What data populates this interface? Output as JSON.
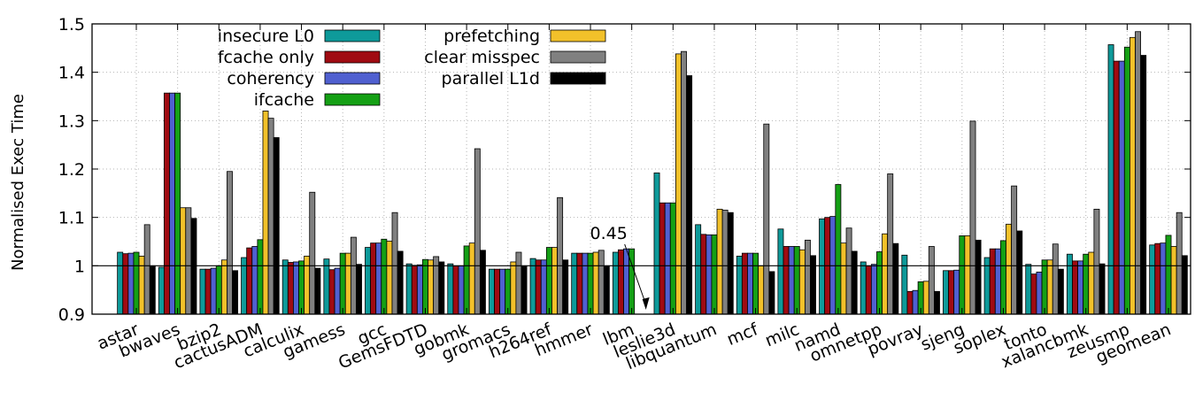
{
  "chart_data": {
    "type": "bar",
    "title": "",
    "xlabel": "",
    "ylabel": "Normalised Exec Time",
    "ylim": [
      0.9,
      1.5
    ],
    "yticks": [
      "0.9",
      "1",
      "1.1",
      "1.2",
      "1.3",
      "1.4",
      "1.5"
    ],
    "ytick_values": [
      0.9,
      1.0,
      1.1,
      1.2,
      1.3,
      1.4,
      1.5
    ],
    "grid": true,
    "legend_position": "top-left",
    "reference_line": 1.0,
    "categories": [
      "astar",
      "bwaves",
      "bzip2",
      "cactusADM",
      "calculix",
      "gamess",
      "gcc",
      "GemsFDTD",
      "gobmk",
      "gromacs",
      "h264ref",
      "hmmer",
      "lbm",
      "leslie3d",
      "libquantum",
      "mcf",
      "milc",
      "namd",
      "omnetpp",
      "povray",
      "sjeng",
      "soplex",
      "tonto",
      "xalancbmk",
      "zeusmp",
      "geomean"
    ],
    "series": [
      {
        "name": "insecure L0",
        "color": "#0e9a9a",
        "values": [
          1.028,
          0.997,
          0.993,
          1.017,
          1.012,
          1.014,
          1.038,
          1.004,
          1.004,
          0.993,
          1.015,
          1.026,
          1.028,
          1.192,
          1.085,
          1.02,
          1.076,
          1.097,
          1.008,
          1.022,
          0.99,
          1.017,
          1.003,
          1.024,
          1.457,
          1.043
        ]
      },
      {
        "name": "fcache only",
        "color": "#a00b12",
        "values": [
          1.025,
          1.357,
          0.993,
          1.037,
          1.007,
          0.992,
          1.047,
          1.001,
          1.0,
          0.993,
          1.012,
          1.026,
          1.033,
          1.13,
          1.065,
          1.026,
          1.04,
          1.1,
          1.0,
          0.947,
          0.99,
          1.035,
          0.983,
          1.01,
          1.423,
          1.046
        ]
      },
      {
        "name": "coherency",
        "color": "#5060d0",
        "values": [
          1.026,
          1.357,
          0.995,
          1.04,
          1.008,
          0.995,
          1.047,
          1.002,
          1.0,
          0.993,
          1.012,
          1.026,
          1.035,
          1.13,
          1.064,
          1.026,
          1.04,
          1.102,
          1.003,
          0.949,
          0.991,
          1.035,
          0.987,
          1.01,
          1.423,
          1.047
        ]
      },
      {
        "name": "ifcache",
        "color": "#15a015",
        "values": [
          1.028,
          1.357,
          1.0,
          1.054,
          1.01,
          1.026,
          1.055,
          1.013,
          1.041,
          0.993,
          1.038,
          1.026,
          1.035,
          1.13,
          1.064,
          1.026,
          1.04,
          1.168,
          1.029,
          0.967,
          1.062,
          1.052,
          1.012,
          1.024,
          1.452,
          1.063
        ]
      },
      {
        "name": "prefetching",
        "color": "#f2c12a",
        "values": [
          1.02,
          1.12,
          1.012,
          1.32,
          1.02,
          1.026,
          1.051,
          1.012,
          1.047,
          1.008,
          1.038,
          1.028,
          null,
          1.438,
          1.117,
          1.0,
          1.033,
          1.047,
          1.066,
          0.968,
          1.062,
          1.086,
          1.012,
          1.028,
          1.472,
          1.04
        ]
      },
      {
        "name": "clear misspec",
        "color": "#808080",
        "values": [
          1.085,
          1.12,
          1.195,
          1.305,
          1.152,
          1.059,
          1.11,
          1.019,
          1.242,
          1.028,
          1.141,
          1.032,
          null,
          1.443,
          1.115,
          1.293,
          1.053,
          1.078,
          1.19,
          1.04,
          1.299,
          1.165,
          1.045,
          1.117,
          1.484,
          1.11
        ]
      },
      {
        "name": "parallel L1d",
        "color": "#000000",
        "values": [
          1.0,
          1.098,
          0.99,
          1.265,
          0.995,
          1.003,
          1.03,
          1.008,
          1.032,
          1.0,
          1.012,
          1.0,
          null,
          1.393,
          1.11,
          0.988,
          1.021,
          1.03,
          1.046,
          0.947,
          1.053,
          1.072,
          0.993,
          1.004,
          1.435,
          1.021
        ]
      }
    ],
    "annotations": [
      {
        "text": "0.45",
        "category": "lbm"
      }
    ]
  }
}
